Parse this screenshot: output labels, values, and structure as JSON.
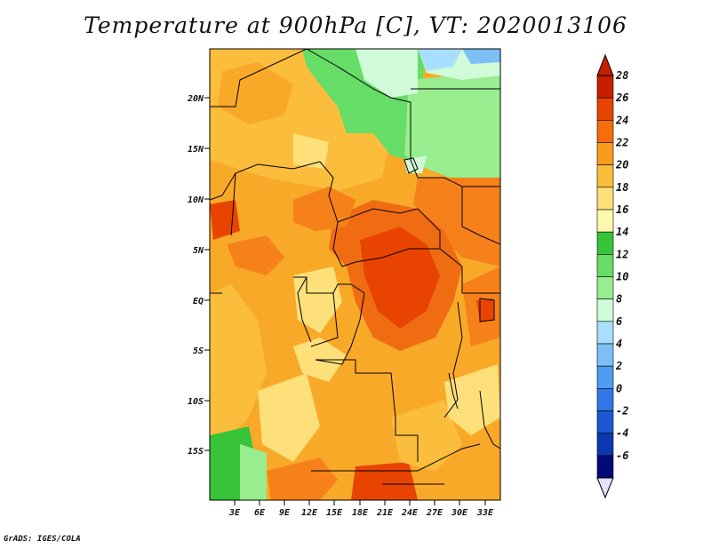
{
  "title": "Temperature at 900hPa [C], VT: 2020013106",
  "footer": "GrADS: IGES/COLA",
  "map": {
    "lat_labels": [
      "20N",
      "15N",
      "10N",
      "5N",
      "EQ",
      "5S",
      "10S",
      "15S"
    ],
    "lon_labels": [
      "3E",
      "6E",
      "9E",
      "12E",
      "15E",
      "18E",
      "21E",
      "24E",
      "27E",
      "30E",
      "33E"
    ]
  },
  "colorbar": {
    "labels": [
      "28",
      "26",
      "24",
      "22",
      "20",
      "18",
      "16",
      "14",
      "12",
      "10",
      "8",
      "6",
      "4",
      "2",
      "0",
      "-2",
      "-4",
      "-6"
    ],
    "colors": [
      "#c81e00",
      "#e84400",
      "#f66e0a",
      "#f99c1c",
      "#fbbd3c",
      "#fde07a",
      "#fff8ae",
      "#38c438",
      "#66dd66",
      "#98ee8e",
      "#d0fbd8",
      "#a8deff",
      "#7cc0f6",
      "#4c9cf0",
      "#3078e8",
      "#1c58d6",
      "#0c38b0",
      "#000a78"
    ],
    "top_arrow_color": "#c81e00",
    "bottom_arrow_color": "#e4e2fc"
  }
}
